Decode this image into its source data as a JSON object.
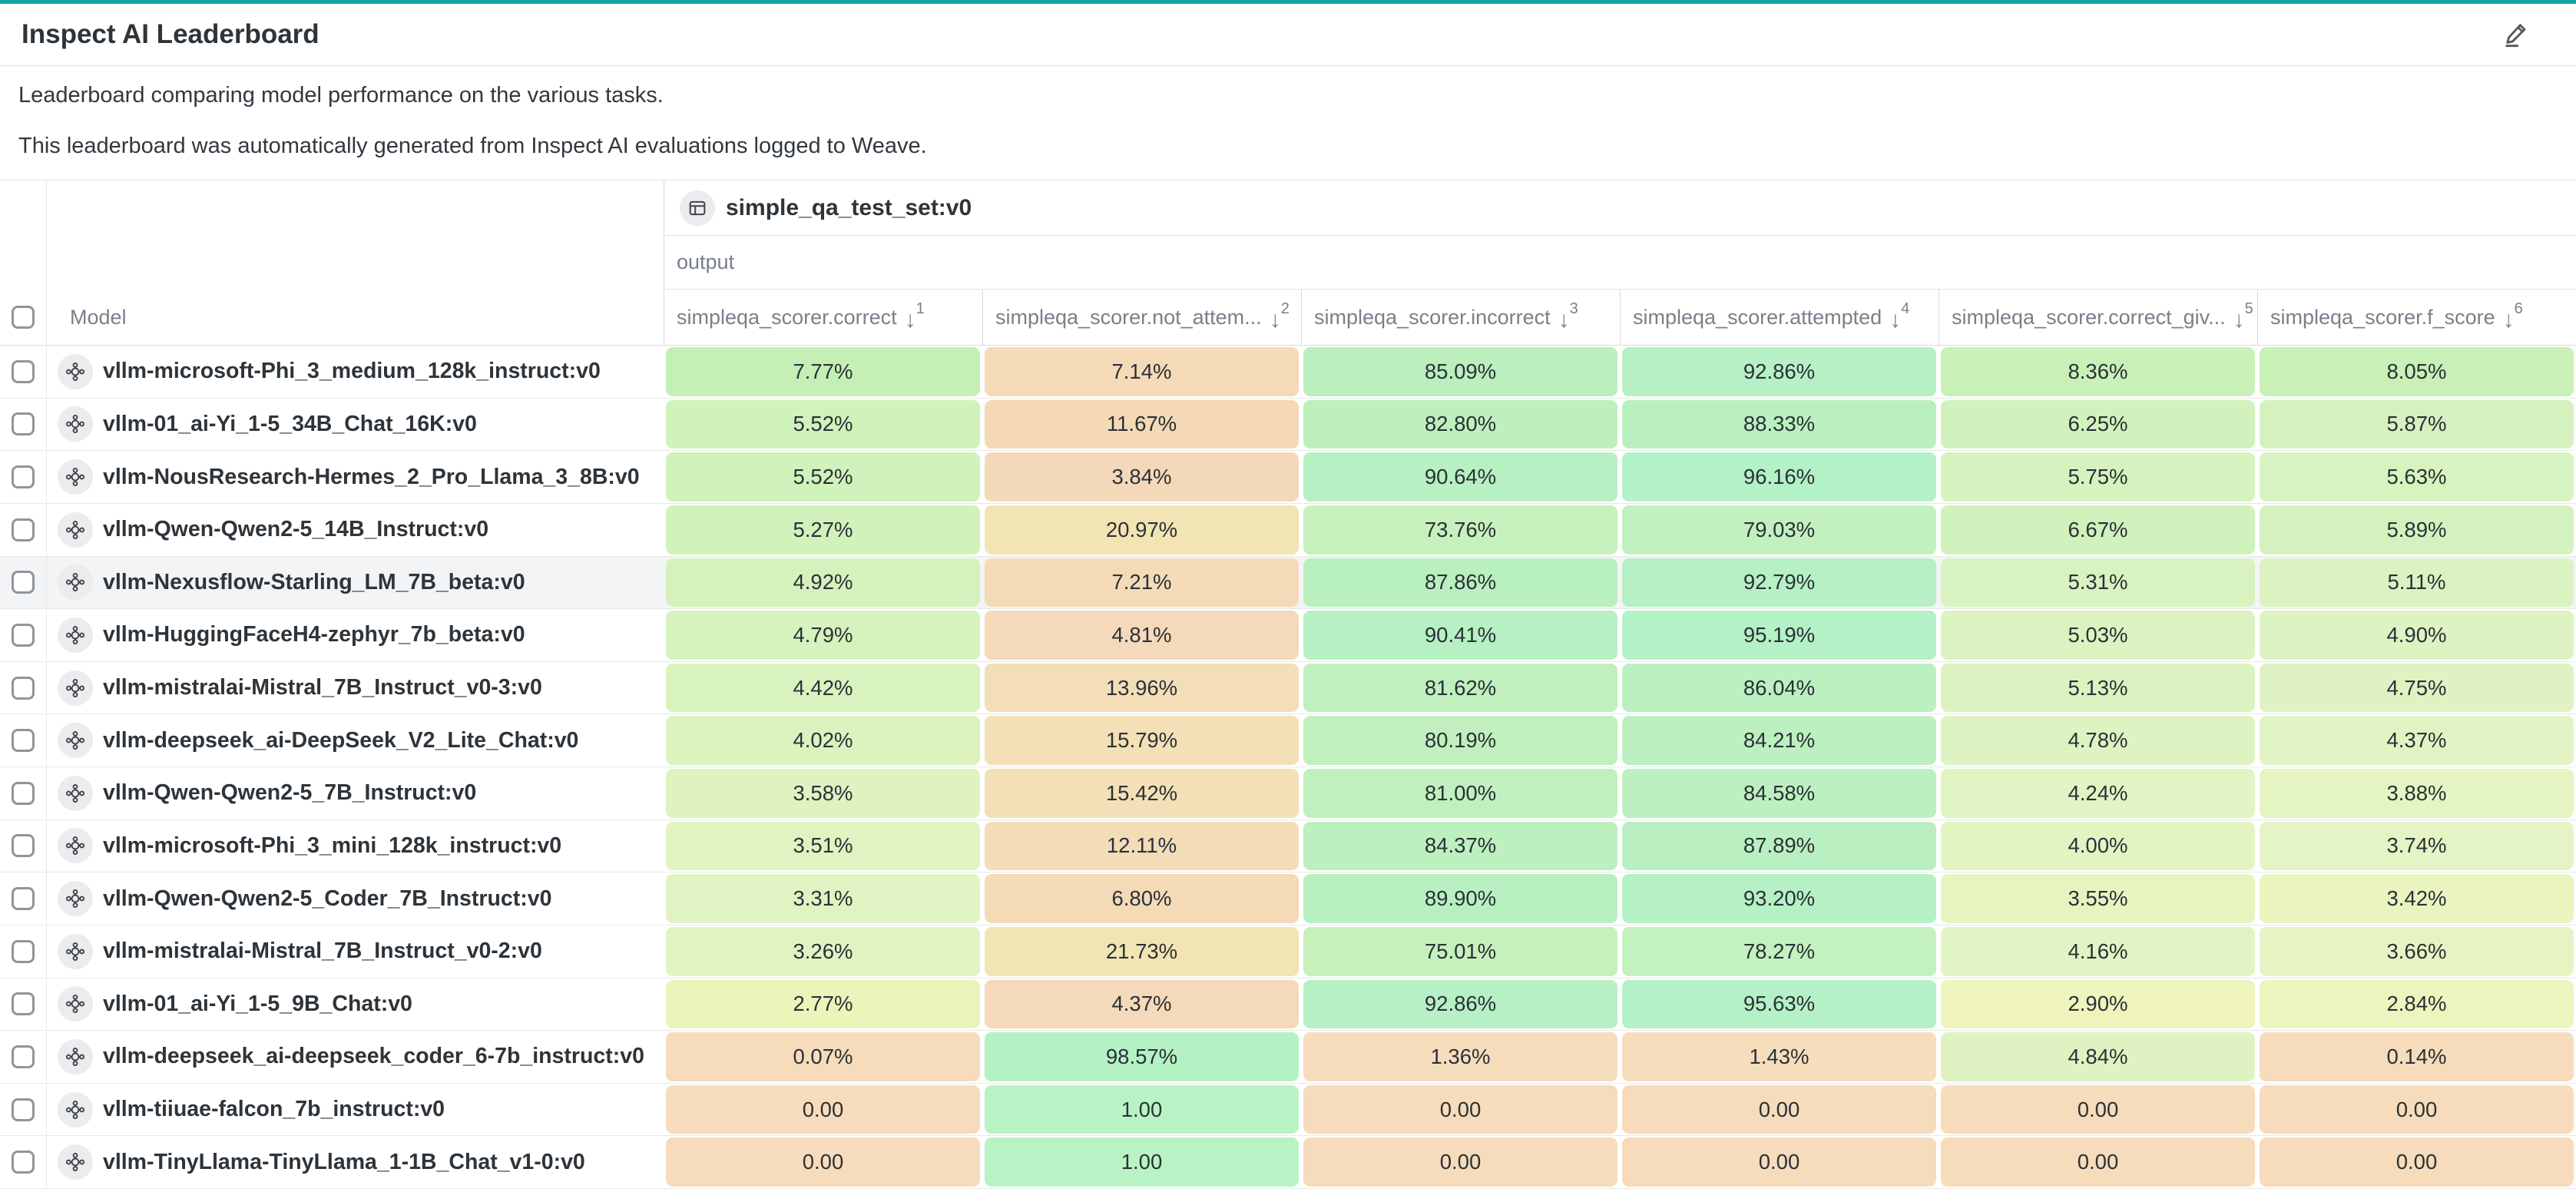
{
  "header": {
    "title": "Inspect AI Leaderboard"
  },
  "description": {
    "line1": "Leaderboard comparing model performance on the various tasks.",
    "line2": "This leaderboard was automatically generated from Inspect AI evaluations logged to Weave."
  },
  "colors": {
    "accent_teal": "#14a5a5",
    "highlight_row_bg": "#f3f4f5",
    "green_high": "#b4f1c6",
    "orange_low": "#f6dcbb"
  },
  "table": {
    "group_header": "simple_qa_test_set:v0",
    "subgroup_header": "output",
    "model_column_label": "Model",
    "sort_arrow_glyph": "↓",
    "columns": [
      {
        "label": "simpleqa_scorer.correct",
        "sort_rank": "1"
      },
      {
        "label": "simpleqa_scorer.not_attem...",
        "sort_rank": "2"
      },
      {
        "label": "simpleqa_scorer.incorrect",
        "sort_rank": "3"
      },
      {
        "label": "simpleqa_scorer.attempted",
        "sort_rank": "4"
      },
      {
        "label": "simpleqa_scorer.correct_giv...",
        "sort_rank": "5"
      },
      {
        "label": "simpleqa_scorer.f_score",
        "sort_rank": "6"
      }
    ],
    "highlighted_row_index": 4,
    "rows": [
      {
        "model": "vllm-microsoft-Phi_3_medium_128k_instruct:v0",
        "cells": [
          {
            "value": "7.77%",
            "color": "#c5f0b5"
          },
          {
            "value": "7.14%",
            "color": "#f5dab8"
          },
          {
            "value": "85.09%",
            "color": "#bbefbd"
          },
          {
            "value": "92.86%",
            "color": "#b6f0c4"
          },
          {
            "value": "8.36%",
            "color": "#c9f0b6"
          },
          {
            "value": "8.05%",
            "color": "#c8f0b7"
          }
        ]
      },
      {
        "model": "vllm-01_ai-Yi_1-5_34B_Chat_16K:v0",
        "cells": [
          {
            "value": "5.52%",
            "color": "#d0f2bb"
          },
          {
            "value": "11.67%",
            "color": "#f5d9b6"
          },
          {
            "value": "82.80%",
            "color": "#bef0bd"
          },
          {
            "value": "88.33%",
            "color": "#baf0c0"
          },
          {
            "value": "6.25%",
            "color": "#d2f2bd"
          },
          {
            "value": "5.87%",
            "color": "#d5f2be"
          }
        ]
      },
      {
        "model": "vllm-NousResearch-Hermes_2_Pro_Llama_3_8B:v0",
        "cells": [
          {
            "value": "5.52%",
            "color": "#d0f2bb"
          },
          {
            "value": "3.84%",
            "color": "#f4d8ba"
          },
          {
            "value": "90.64%",
            "color": "#b7f0c2"
          },
          {
            "value": "96.16%",
            "color": "#b3f1c7"
          },
          {
            "value": "5.75%",
            "color": "#d6f2be"
          },
          {
            "value": "5.63%",
            "color": "#d7f3bf"
          }
        ]
      },
      {
        "model": "vllm-Qwen-Qwen2-5_14B_Instruct:v0",
        "cells": [
          {
            "value": "5.27%",
            "color": "#d2f2bc"
          },
          {
            "value": "20.97%",
            "color": "#f3e4b4"
          },
          {
            "value": "73.76%",
            "color": "#c7f1bc"
          },
          {
            "value": "79.03%",
            "color": "#c2f1bf"
          },
          {
            "value": "6.67%",
            "color": "#d0f2bc"
          },
          {
            "value": "5.89%",
            "color": "#d4f2be"
          }
        ]
      },
      {
        "model": "vllm-Nexusflow-Starling_LM_7B_beta:v0",
        "cells": [
          {
            "value": "4.92%",
            "color": "#d5f2bd"
          },
          {
            "value": "7.21%",
            "color": "#f5dab8"
          },
          {
            "value": "87.86%",
            "color": "#b9f0c0"
          },
          {
            "value": "92.79%",
            "color": "#b6f0c4"
          },
          {
            "value": "5.31%",
            "color": "#d9f3c0"
          },
          {
            "value": "5.11%",
            "color": "#dbf3c0"
          }
        ]
      },
      {
        "model": "vllm-HuggingFaceH4-zephyr_7b_beta:v0",
        "cells": [
          {
            "value": "4.79%",
            "color": "#d6f2bd"
          },
          {
            "value": "4.81%",
            "color": "#f4d9ba"
          },
          {
            "value": "90.41%",
            "color": "#b7f0c2"
          },
          {
            "value": "95.19%",
            "color": "#b4f1c6"
          },
          {
            "value": "5.03%",
            "color": "#dcf3c1"
          },
          {
            "value": "4.90%",
            "color": "#ddf3c1"
          }
        ]
      },
      {
        "model": "vllm-mistralai-Mistral_7B_Instruct_v0-3:v0",
        "cells": [
          {
            "value": "4.42%",
            "color": "#d9f3bf"
          },
          {
            "value": "13.96%",
            "color": "#f4deb8"
          },
          {
            "value": "81.62%",
            "color": "#bff0be"
          },
          {
            "value": "86.04%",
            "color": "#bbf0c1"
          },
          {
            "value": "5.13%",
            "color": "#dbf3c0"
          },
          {
            "value": "4.75%",
            "color": "#def3c1"
          }
        ]
      },
      {
        "model": "vllm-deepseek_ai-DeepSeek_V2_Lite_Chat:v0",
        "cells": [
          {
            "value": "4.02%",
            "color": "#dcf3c0"
          },
          {
            "value": "15.79%",
            "color": "#f4e0b6"
          },
          {
            "value": "80.19%",
            "color": "#c1f0be"
          },
          {
            "value": "84.21%",
            "color": "#bdf0c0"
          },
          {
            "value": "4.78%",
            "color": "#def3c2"
          },
          {
            "value": "4.37%",
            "color": "#e1f3c2"
          }
        ]
      },
      {
        "model": "vllm-Qwen-Qwen2-5_7B_Instruct:v0",
        "cells": [
          {
            "value": "3.58%",
            "color": "#dff3c1"
          },
          {
            "value": "15.42%",
            "color": "#f4e0b6"
          },
          {
            "value": "81.00%",
            "color": "#c0f0be"
          },
          {
            "value": "84.58%",
            "color": "#bdf0c0"
          },
          {
            "value": "4.24%",
            "color": "#e1f4c3"
          },
          {
            "value": "3.88%",
            "color": "#e4f4c3"
          }
        ]
      },
      {
        "model": "vllm-microsoft-Phi_3_mini_128k_instruct:v0",
        "cells": [
          {
            "value": "3.51%",
            "color": "#e0f3c1"
          },
          {
            "value": "12.11%",
            "color": "#f4dcb9"
          },
          {
            "value": "84.37%",
            "color": "#bcf0bf"
          },
          {
            "value": "87.89%",
            "color": "#baf0c1"
          },
          {
            "value": "4.00%",
            "color": "#e3f4c3"
          },
          {
            "value": "3.74%",
            "color": "#e5f4c4"
          }
        ]
      },
      {
        "model": "vllm-Qwen-Qwen2-5_Coder_7B_Instruct:v0",
        "cells": [
          {
            "value": "3.31%",
            "color": "#e1f3c2"
          },
          {
            "value": "6.80%",
            "color": "#f5dab8"
          },
          {
            "value": "89.90%",
            "color": "#b8f0c1"
          },
          {
            "value": "93.20%",
            "color": "#b5f1c5"
          },
          {
            "value": "3.55%",
            "color": "#e8f4c0"
          },
          {
            "value": "3.42%",
            "color": "#e9f4bf"
          }
        ]
      },
      {
        "model": "vllm-mistralai-Mistral_7B_Instruct_v0-2:v0",
        "cells": [
          {
            "value": "3.26%",
            "color": "#e2f3c2"
          },
          {
            "value": "21.73%",
            "color": "#f3e4b3"
          },
          {
            "value": "75.01%",
            "color": "#c6f1bc"
          },
          {
            "value": "78.27%",
            "color": "#c3f1bf"
          },
          {
            "value": "4.16%",
            "color": "#e2f4c3"
          },
          {
            "value": "3.66%",
            "color": "#e6f4c4"
          }
        ]
      },
      {
        "model": "vllm-01_ai-Yi_1-5_9B_Chat:v0",
        "cells": [
          {
            "value": "2.77%",
            "color": "#edf4ba"
          },
          {
            "value": "4.37%",
            "color": "#f4d9ba"
          },
          {
            "value": "92.86%",
            "color": "#b6f0c4"
          },
          {
            "value": "95.63%",
            "color": "#b4f1c6"
          },
          {
            "value": "2.90%",
            "color": "#eef4bc"
          },
          {
            "value": "2.84%",
            "color": "#eef4bd"
          }
        ]
      },
      {
        "model": "vllm-deepseek_ai-deepseek_coder_6-7b_instruct:v0",
        "cells": [
          {
            "value": "0.07%",
            "color": "#f6dcbb"
          },
          {
            "value": "98.57%",
            "color": "#b5f2c3"
          },
          {
            "value": "1.36%",
            "color": "#f6ddbc"
          },
          {
            "value": "1.43%",
            "color": "#f6ddbc"
          },
          {
            "value": "4.84%",
            "color": "#def3c1"
          },
          {
            "value": "0.14%",
            "color": "#f6dcbb"
          }
        ]
      },
      {
        "model": "vllm-tiiuae-falcon_7b_instruct:v0",
        "cells": [
          {
            "value": "0.00",
            "color": "#f6dcbb"
          },
          {
            "value": "1.00",
            "color": "#b9f3c5"
          },
          {
            "value": "0.00",
            "color": "#f6dcbb"
          },
          {
            "value": "0.00",
            "color": "#f6dcbb"
          },
          {
            "value": "0.00",
            "color": "#f6dcbb"
          },
          {
            "value": "0.00",
            "color": "#f6dcbb"
          }
        ]
      },
      {
        "model": "vllm-TinyLlama-TinyLlama_1-1B_Chat_v1-0:v0",
        "cells": [
          {
            "value": "0.00",
            "color": "#f6dcbb"
          },
          {
            "value": "1.00",
            "color": "#b9f3c5"
          },
          {
            "value": "0.00",
            "color": "#f6dcbb"
          },
          {
            "value": "0.00",
            "color": "#f6dcbb"
          },
          {
            "value": "0.00",
            "color": "#f6dcbb"
          },
          {
            "value": "0.00",
            "color": "#f6dcbb"
          }
        ]
      }
    ]
  }
}
